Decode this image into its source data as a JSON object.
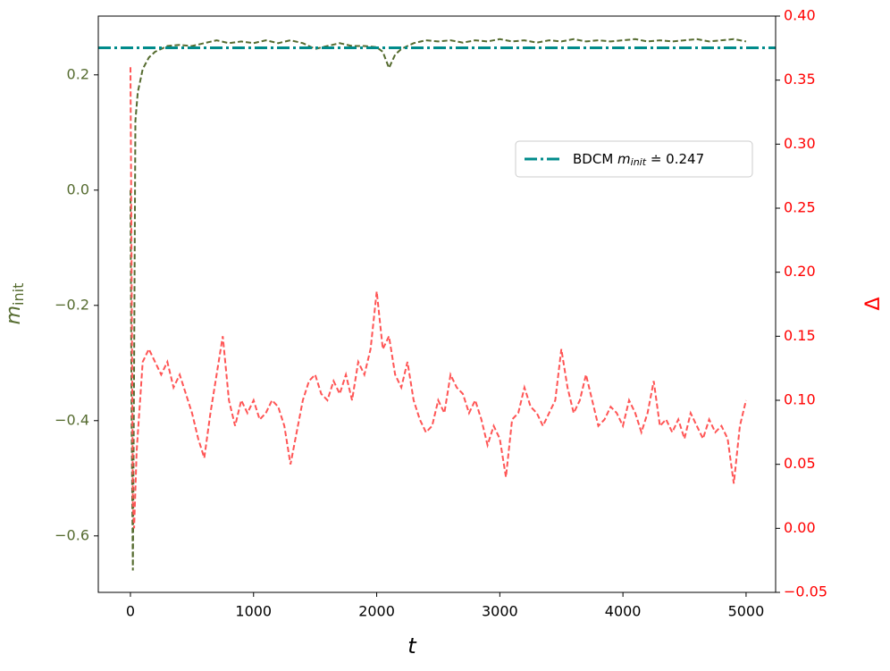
{
  "chart_data": {
    "type": "line",
    "xlabel": "t",
    "ylabel": "m",
    "ylabel_sub": "init",
    "y2label": "Δ",
    "xlim": [
      -261,
      5240
    ],
    "ylim": [
      -0.698,
      0.302
    ],
    "y2lim": [
      -0.05,
      0.4
    ],
    "xticks": [
      0,
      1000,
      2000,
      3000,
      4000,
      5000
    ],
    "yticks": [
      {
        "value": -0.6,
        "label": "−0.6"
      },
      {
        "value": -0.4,
        "label": "−0.4"
      },
      {
        "value": -0.2,
        "label": "−0.2"
      },
      {
        "value": 0,
        "label": "0.0"
      },
      0.2
    ],
    "y2ticks": [
      {
        "value": -0.05,
        "label": "−0.05"
      },
      {
        "value": 0,
        "label": "0.00"
      },
      0.05,
      {
        "value": 0.1,
        "label": "0.10"
      },
      0.15,
      {
        "value": 0.2,
        "label": "0.20"
      },
      0.25,
      {
        "value": 0.3,
        "label": "0.30"
      },
      0.35,
      {
        "value": 0.4,
        "label": "0.40"
      }
    ],
    "ytick_color": "#556b2f",
    "y2tick_color": "#ff0000",
    "legend": "right",
    "hline": {
      "value": 0.247,
      "color": "#008b8b",
      "name": "BDCM ",
      "name_math": "m",
      "name_sub": "init",
      "name_suffix": " ≐ 0.247"
    },
    "series": [
      {
        "axis": "y",
        "color": "#556b2f",
        "x": [
          0,
          10,
          20,
          30,
          40,
          60,
          80,
          100,
          150,
          200,
          300,
          400,
          500,
          600,
          700,
          800,
          900,
          1000,
          1100,
          1200,
          1300,
          1400,
          1500,
          1600,
          1700,
          1800,
          1900,
          2000,
          2050,
          2100,
          2150,
          2200,
          2300,
          2400,
          2500,
          2600,
          2700,
          2800,
          2900,
          3000,
          3100,
          3200,
          3300,
          3400,
          3500,
          3600,
          3700,
          3800,
          3900,
          4000,
          4100,
          4200,
          4300,
          4400,
          4500,
          4600,
          4700,
          4800,
          4900,
          5000
        ],
        "values": [
          0.0,
          -0.4,
          -0.66,
          -0.3,
          0.12,
          0.17,
          0.19,
          0.21,
          0.23,
          0.24,
          0.25,
          0.252,
          0.25,
          0.255,
          0.26,
          0.255,
          0.258,
          0.255,
          0.26,
          0.255,
          0.26,
          0.255,
          0.245,
          0.25,
          0.255,
          0.25,
          0.25,
          0.248,
          0.24,
          0.212,
          0.235,
          0.245,
          0.255,
          0.26,
          0.258,
          0.26,
          0.256,
          0.26,
          0.258,
          0.262,
          0.258,
          0.26,
          0.256,
          0.26,
          0.258,
          0.262,
          0.258,
          0.26,
          0.258,
          0.26,
          0.262,
          0.258,
          0.26,
          0.258,
          0.26,
          0.262,
          0.258,
          0.26,
          0.262,
          0.258
        ]
      },
      {
        "axis": "y2",
        "color": "#ff5555",
        "x": [
          0,
          10,
          20,
          30,
          50,
          100,
          150,
          200,
          250,
          300,
          350,
          400,
          450,
          500,
          550,
          600,
          650,
          700,
          750,
          800,
          850,
          900,
          950,
          1000,
          1050,
          1100,
          1150,
          1200,
          1250,
          1300,
          1350,
          1400,
          1450,
          1500,
          1550,
          1600,
          1650,
          1700,
          1750,
          1800,
          1850,
          1900,
          1950,
          2000,
          2050,
          2100,
          2150,
          2200,
          2250,
          2300,
          2350,
          2400,
          2450,
          2500,
          2550,
          2600,
          2650,
          2700,
          2750,
          2800,
          2850,
          2900,
          2950,
          3000,
          3050,
          3100,
          3150,
          3200,
          3250,
          3300,
          3350,
          3400,
          3450,
          3500,
          3550,
          3600,
          3650,
          3700,
          3750,
          3800,
          3850,
          3900,
          3950,
          4000,
          4050,
          4100,
          4150,
          4200,
          4250,
          4300,
          4350,
          4400,
          4450,
          4500,
          4550,
          4600,
          4650,
          4700,
          4750,
          4800,
          4850,
          4900,
          4950,
          5000
        ],
        "values": [
          0.36,
          0.2,
          0.02,
          0.0,
          0.06,
          0.13,
          0.14,
          0.13,
          0.12,
          0.13,
          0.11,
          0.12,
          0.105,
          0.09,
          0.07,
          0.055,
          0.09,
          0.12,
          0.15,
          0.1,
          0.08,
          0.1,
          0.09,
          0.1,
          0.085,
          0.09,
          0.1,
          0.095,
          0.08,
          0.05,
          0.075,
          0.1,
          0.115,
          0.12,
          0.105,
          0.1,
          0.115,
          0.105,
          0.12,
          0.1,
          0.13,
          0.12,
          0.14,
          0.185,
          0.14,
          0.15,
          0.12,
          0.11,
          0.13,
          0.1,
          0.085,
          0.075,
          0.08,
          0.1,
          0.09,
          0.12,
          0.11,
          0.105,
          0.09,
          0.1,
          0.085,
          0.065,
          0.08,
          0.07,
          0.04,
          0.085,
          0.09,
          0.11,
          0.095,
          0.09,
          0.08,
          0.09,
          0.1,
          0.14,
          0.11,
          0.09,
          0.1,
          0.12,
          0.1,
          0.08,
          0.085,
          0.095,
          0.09,
          0.08,
          0.1,
          0.09,
          0.075,
          0.09,
          0.115,
          0.08,
          0.085,
          0.075,
          0.085,
          0.07,
          0.09,
          0.08,
          0.07,
          0.085,
          0.075,
          0.08,
          0.07,
          0.035,
          0.08,
          0.1
        ]
      }
    ]
  }
}
